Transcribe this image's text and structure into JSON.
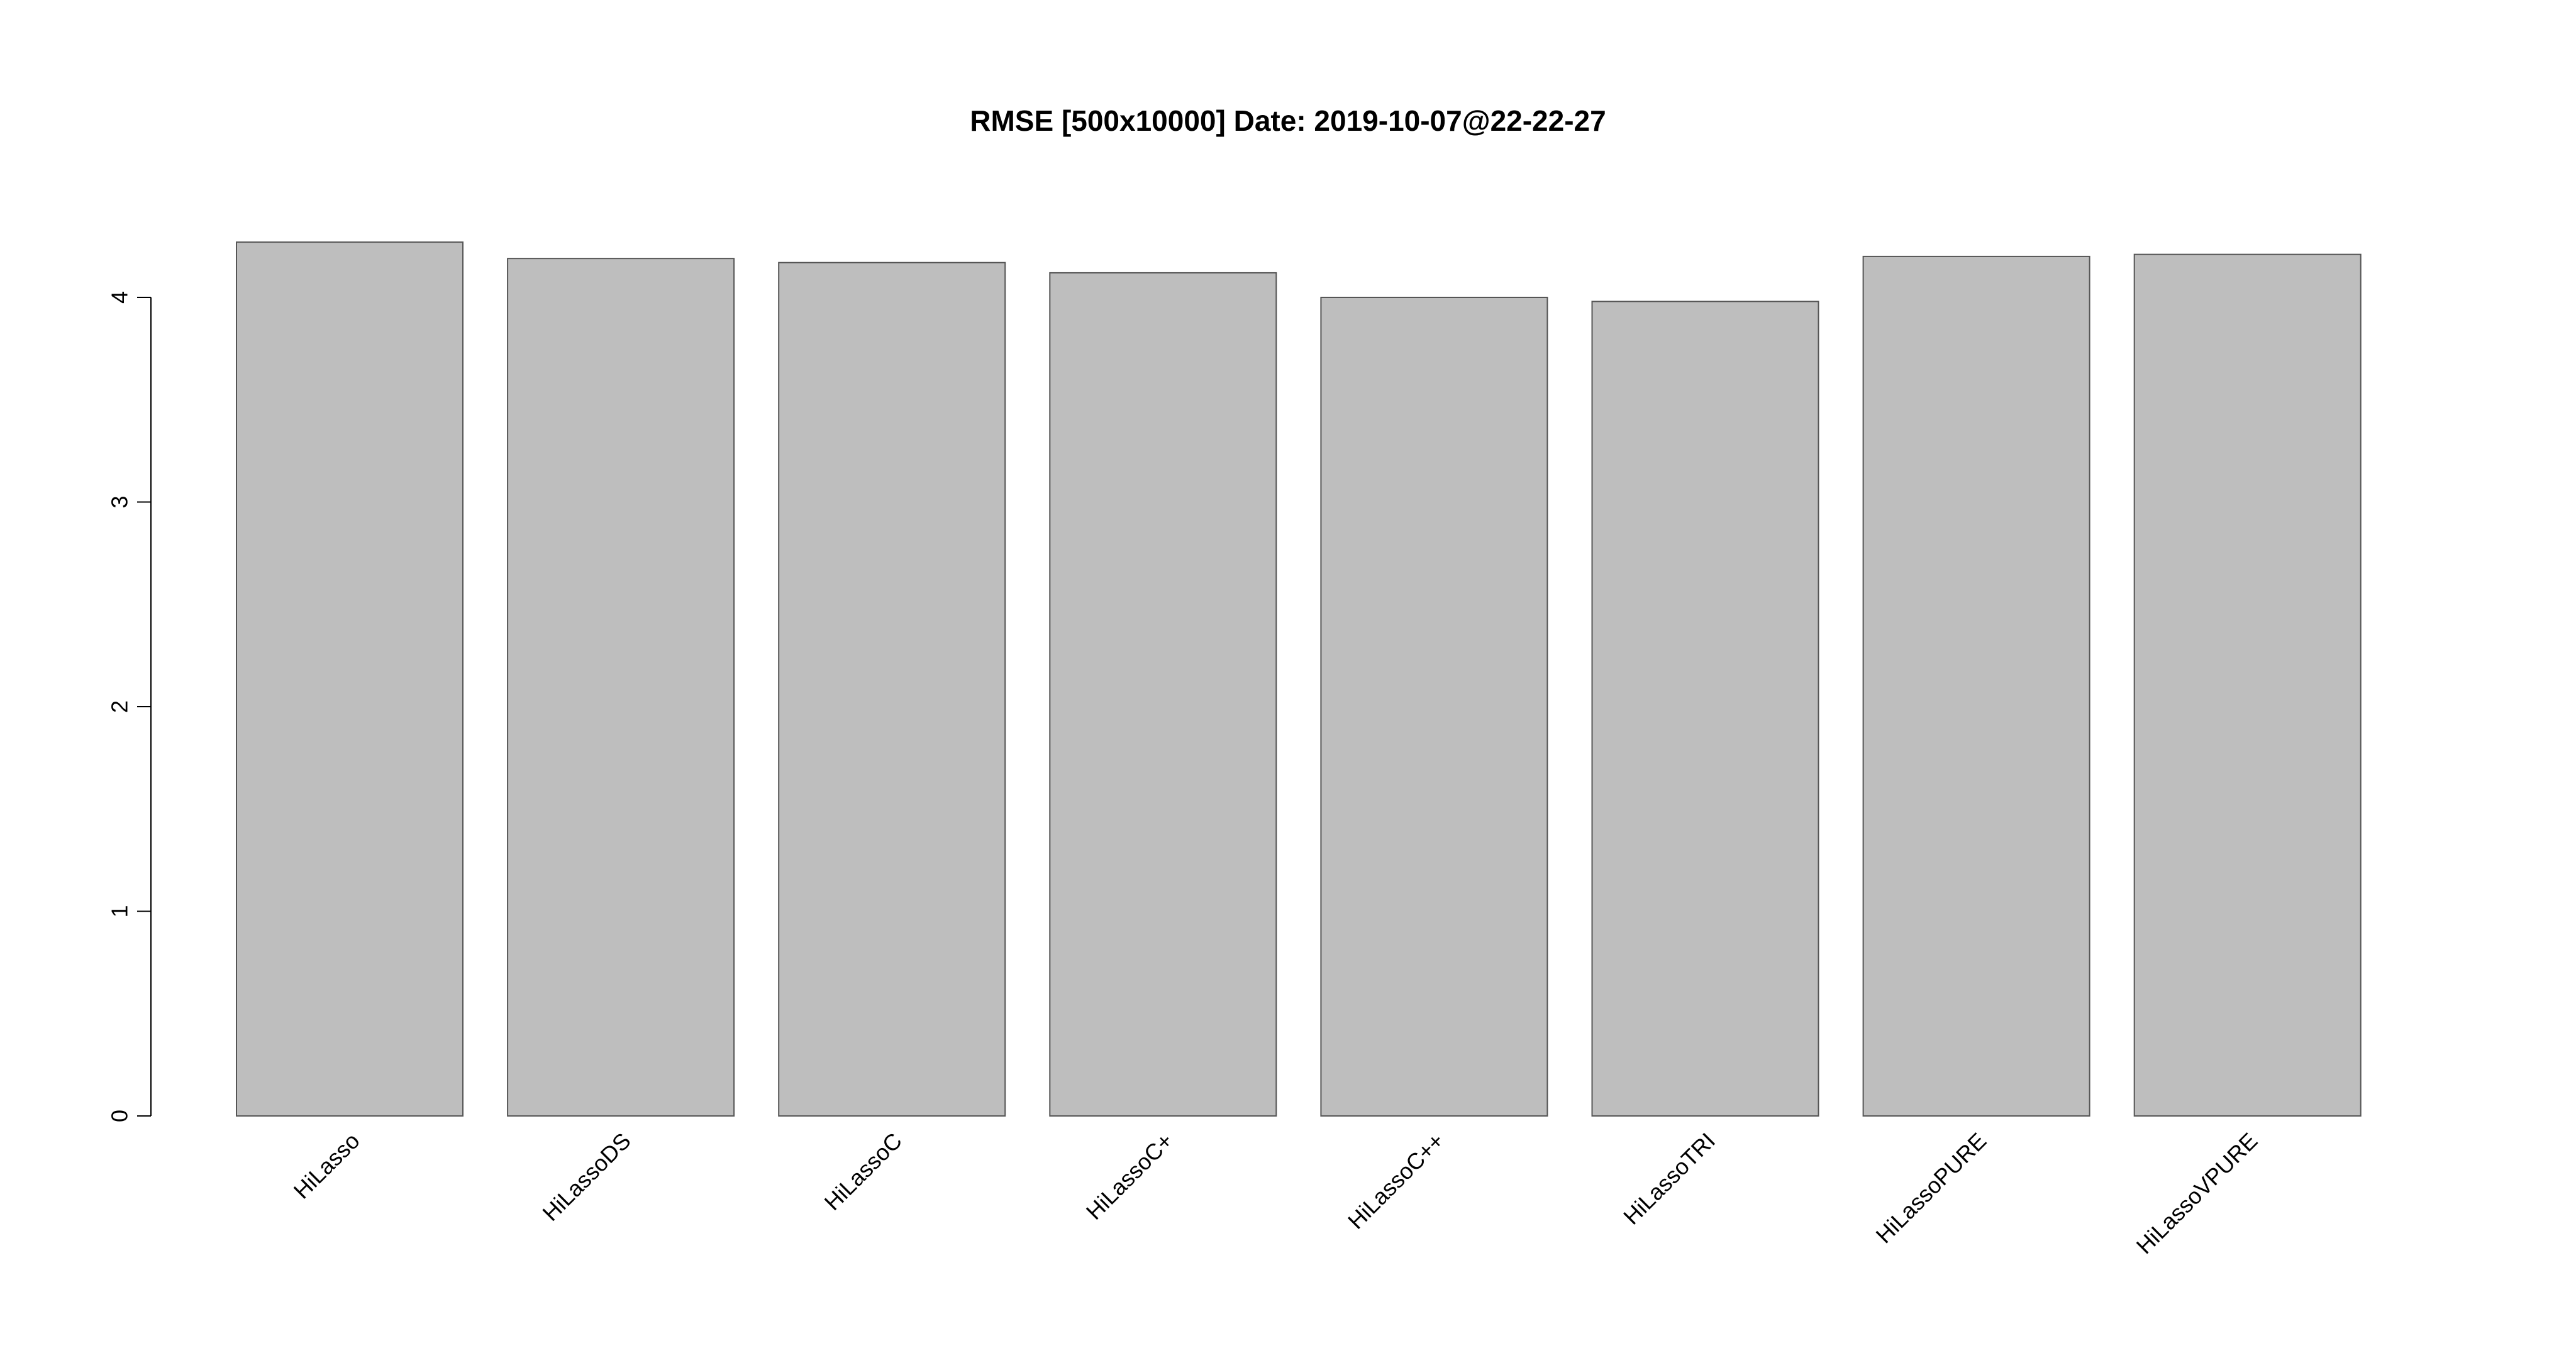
{
  "chart_data": {
    "type": "bar",
    "title": "RMSE [500x10000] Date: 2019-10-07@22-22-27",
    "xlabel": "",
    "ylabel": "",
    "categories": [
      "HiLasso",
      "HiLassoDS",
      "HiLassoC",
      "HiLassoC+",
      "HiLassoC++",
      "HiLassoTRI",
      "HiLassoPURE",
      "HiLassoVPURE"
    ],
    "values": [
      4.27,
      4.19,
      4.17,
      4.12,
      4.0,
      3.98,
      4.2,
      4.21
    ],
    "ylim": [
      0,
      4.27
    ],
    "yticks": [
      0,
      1,
      2,
      3,
      4
    ],
    "grid": false,
    "legend": "none",
    "bar_color": "#bebebe",
    "bar_border_color": "#555555"
  }
}
